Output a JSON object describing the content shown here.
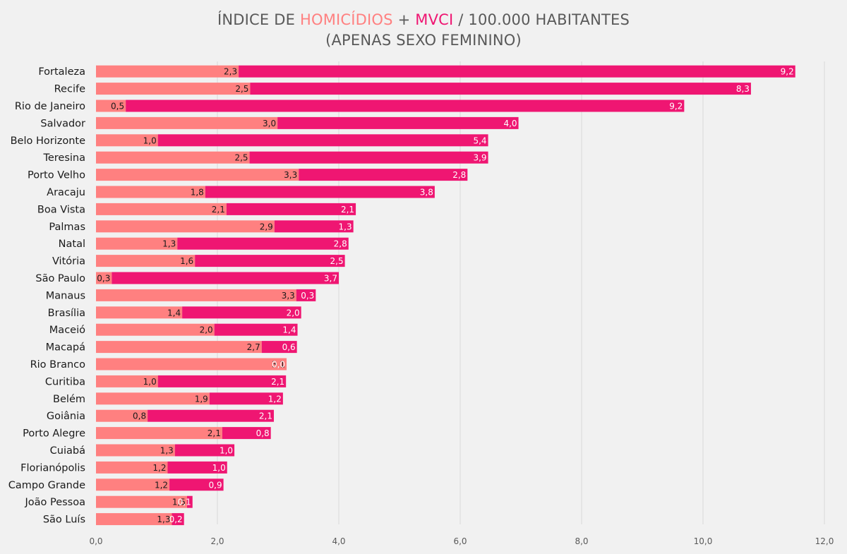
{
  "title": {
    "part1": "ÍNDICE DE ",
    "homicidios": "HOMICÍDIOS",
    "plus": " + ",
    "mvci": "MVCI",
    "part2": " / 100.000 HABITANTES",
    "line2": "(APENAS SEXO FEMININO)"
  },
  "colors": {
    "homicidios": "#ff8080",
    "mvci": "#ef1672",
    "background": "#f1f1f1",
    "gridline": "#d9d9d9"
  },
  "chart_data": {
    "type": "bar",
    "orientation": "horizontal",
    "stacked": true,
    "title": "ÍNDICE DE HOMICÍDIOS + MVCI / 100.000 HABITANTES (APENAS SEXO FEMININO)",
    "xlim": [
      0,
      12
    ],
    "xticks": [
      "0,0",
      "2,0",
      "4,0",
      "6,0",
      "8,0",
      "10,0",
      "12,0"
    ],
    "grid": true,
    "categories": [
      "Fortaleza",
      "Recife",
      "Rio de Janeiro",
      "Salvador",
      "Belo Horizonte",
      "Teresina",
      "Porto Velho",
      "Aracaju",
      "Boa Vista",
      "Palmas",
      "Natal",
      "Vitória",
      "São Paulo",
      "Manaus",
      "Brasília",
      "Maceió",
      "Macapá",
      "Rio Branco",
      "Curitiba",
      "Belém",
      "Goiânia",
      "Porto Alegre",
      "Cuiabá",
      "Florianópolis",
      "Campo Grande",
      "João Pessoa",
      "São Luís"
    ],
    "series": [
      {
        "name": "HOMICÍDIOS",
        "values": [
          2.35,
          2.54,
          0.49,
          2.99,
          1.02,
          2.53,
          3.34,
          1.8,
          2.15,
          2.94,
          1.34,
          1.63,
          0.26,
          3.3,
          1.42,
          1.95,
          2.73,
          3.14,
          1.02,
          1.87,
          0.85,
          2.08,
          1.3,
          1.18,
          1.21,
          1.5,
          1.25
        ],
        "labels": [
          "2,3",
          "2,5",
          "0,5",
          "3,0",
          "1,0",
          "2,5",
          "3,3",
          "1,8",
          "2,1",
          "2,9",
          "1,3",
          "1,6",
          "0,3",
          "3,3",
          "1,4",
          "2,0",
          "2,7",
          "3,1",
          "1,0",
          "1,9",
          "0,8",
          "2,1",
          "1,3",
          "1,2",
          "1,2",
          "1,5",
          "1,3"
        ]
      },
      {
        "name": "MVCI",
        "values": [
          9.17,
          8.25,
          9.2,
          3.97,
          5.44,
          3.93,
          2.78,
          3.78,
          2.13,
          1.3,
          2.82,
          2.47,
          3.74,
          0.32,
          1.96,
          1.37,
          0.58,
          0.0,
          2.11,
          1.21,
          2.08,
          0.8,
          0.98,
          0.98,
          0.89,
          0.09,
          0.2
        ],
        "labels": [
          "9,2",
          "8,3",
          "9,2",
          "4,0",
          "5,4",
          "3,9",
          "2,8",
          "3,8",
          "2,1",
          "1,3",
          "2,8",
          "2,5",
          "3,7",
          "0,3",
          "2,0",
          "1,4",
          "0,6",
          "0,0",
          "2,1",
          "1,2",
          "2,1",
          "0,8",
          "1,0",
          "1,0",
          "0,9",
          "0,1",
          "0,2"
        ]
      }
    ]
  }
}
